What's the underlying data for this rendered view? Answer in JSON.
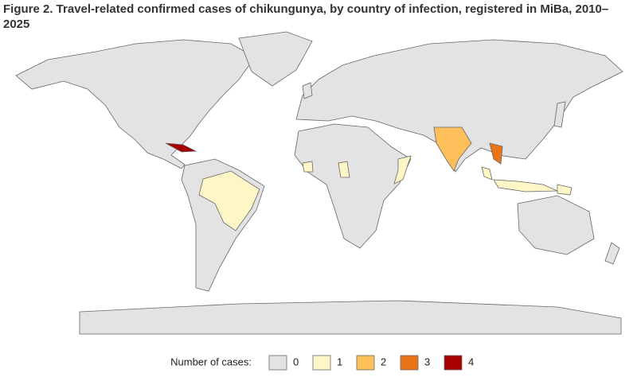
{
  "chart_data": {
    "type": "choropleth",
    "title": "Figure 2. Travel-related confirmed cases of chikungunya, by country of infection, registered in MiBa, 2010–2025",
    "legend_title": "Number of cases:",
    "legend": {
      "categories": [
        0,
        1,
        2,
        3,
        4
      ],
      "colors": [
        "#e3e3e3",
        "#fff6c8",
        "#fdc05a",
        "#ec7418",
        "#a80000"
      ]
    },
    "values": [
      4,
      3,
      2,
      1,
      1,
      1,
      1,
      1,
      1,
      1
    ]
  }
}
